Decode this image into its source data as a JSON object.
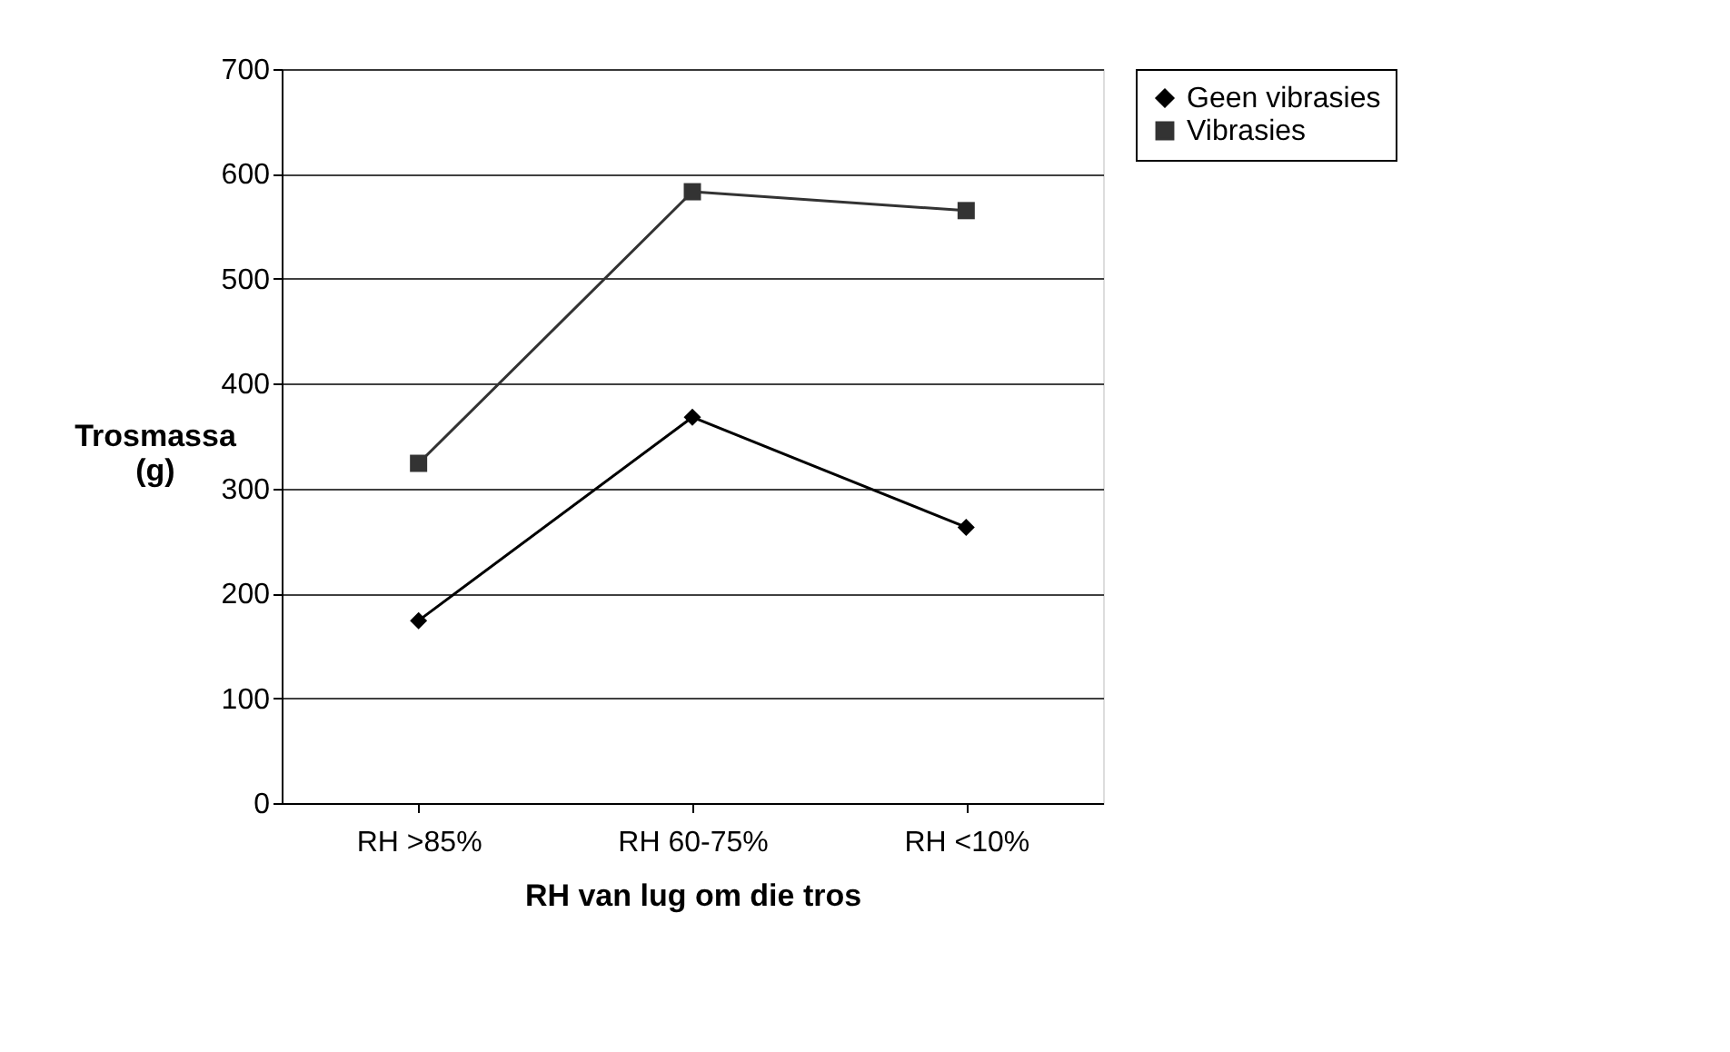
{
  "chart_data": {
    "type": "line",
    "xlabel": "RH van lug om die tros",
    "ylabel": "Trosmassa (g)",
    "categories": [
      "RH >85%",
      "RH 60-75%",
      "RH <10%"
    ],
    "series": [
      {
        "name": "Geen vibrasies",
        "color": "#000000",
        "marker": "diamond",
        "values": [
          174,
          368,
          263
        ]
      },
      {
        "name": "Vibrasies",
        "color": "#333333",
        "marker": "square",
        "values": [
          324,
          583,
          565
        ]
      }
    ],
    "ylim": [
      0,
      700
    ],
    "yticks": [
      0,
      100,
      200,
      300,
      400,
      500,
      600,
      700
    ],
    "grid": "y",
    "legend": "right"
  }
}
